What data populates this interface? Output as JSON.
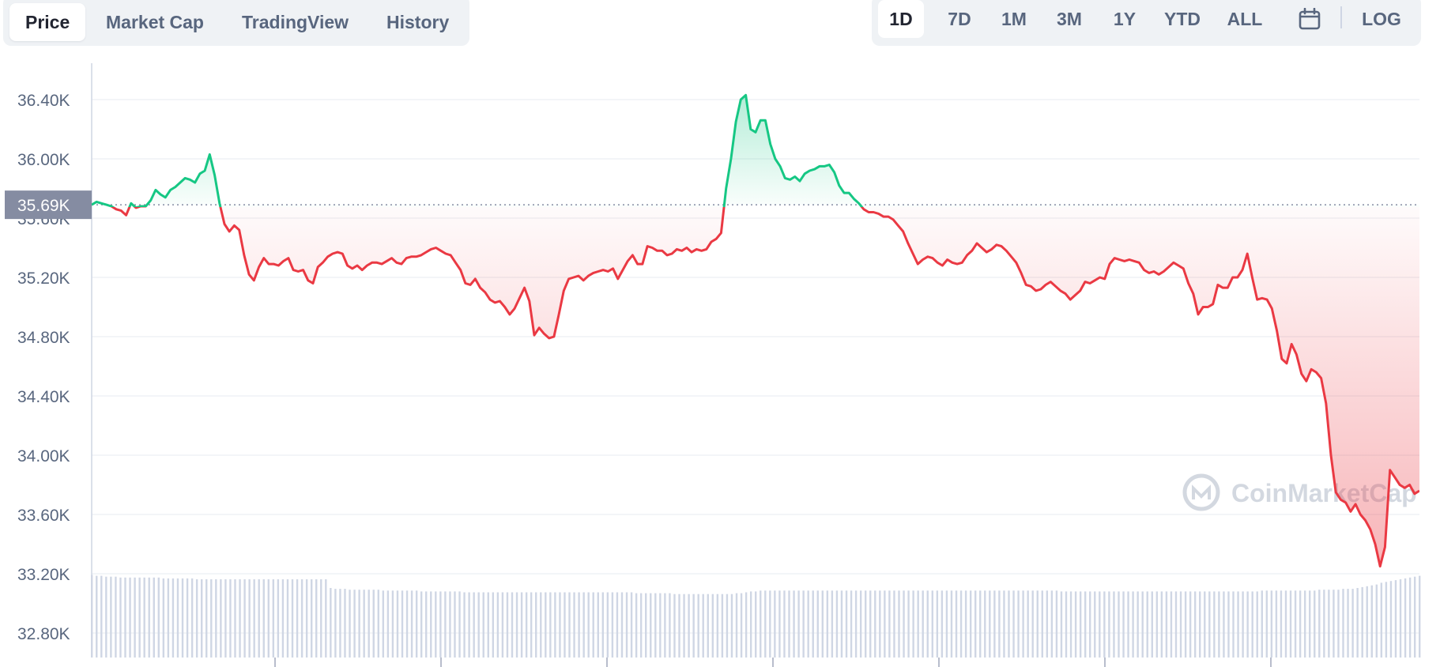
{
  "tabs": [
    {
      "label": "Price",
      "active": true
    },
    {
      "label": "Market Cap",
      "active": false
    },
    {
      "label": "TradingView",
      "active": false
    },
    {
      "label": "History",
      "active": false
    }
  ],
  "ranges": [
    {
      "label": "1D",
      "active": true
    },
    {
      "label": "7D",
      "active": false
    },
    {
      "label": "1M",
      "active": false
    },
    {
      "label": "3M",
      "active": false
    },
    {
      "label": "1Y",
      "active": false
    },
    {
      "label": "YTD",
      "active": false
    },
    {
      "label": "ALL",
      "active": false
    }
  ],
  "calendar_icon": "calendar-icon",
  "log_label": "LOG",
  "watermark": "CoinMarketCap",
  "current_price_label": "35.69K",
  "colors": {
    "up": "#16c784",
    "down": "#ea3943",
    "volume": "#cfd6e4",
    "grid": "#eff2f5",
    "baseline_tag": "#858ca2"
  },
  "chart_data": {
    "type": "area",
    "title": "",
    "xlabel": "",
    "ylabel": "",
    "ylim": [
      32600,
      36600
    ],
    "yticks": [
      32800,
      33200,
      33600,
      34000,
      34400,
      34800,
      35200,
      35600,
      36000,
      36400
    ],
    "ytick_labels": [
      "32.80K",
      "33.20K",
      "33.60K",
      "34.00K",
      "34.40K",
      "34.80K",
      "35.20K",
      "35.60K",
      "36.00K",
      "36.40K"
    ],
    "reference_price": 35690,
    "grid": true,
    "series": [
      {
        "values": [
          35690,
          35710,
          35700,
          35690,
          35680,
          35660,
          35650,
          35620,
          35700,
          35670,
          35680,
          35680,
          35720,
          35790,
          35760,
          35740,
          35790,
          35810,
          35840,
          35870,
          35860,
          35840,
          35900,
          35920,
          36030,
          35890,
          35700,
          35560,
          35510,
          35550,
          35520,
          35350,
          35220,
          35180,
          35270,
          35330,
          35290,
          35290,
          35280,
          35310,
          35330,
          35250,
          35240,
          35250,
          35180,
          35160,
          35270,
          35300,
          35340,
          35360,
          35370,
          35360,
          35280,
          35260,
          35280,
          35250,
          35280,
          35300,
          35300,
          35290,
          35310,
          35330,
          35300,
          35290,
          35330,
          35340,
          35340,
          35350,
          35370,
          35390,
          35400,
          35380,
          35360,
          35350,
          35300,
          35250,
          35160,
          35150,
          35190,
          35130,
          35100,
          35050,
          35030,
          35040,
          35000,
          34950,
          34990,
          35060,
          35130,
          35040,
          34810,
          34860,
          34820,
          34790,
          34800,
          34950,
          35110,
          35190,
          35200,
          35210,
          35180,
          35210,
          35230,
          35240,
          35250,
          35240,
          35260,
          35190,
          35250,
          35310,
          35350,
          35290,
          35290,
          35410,
          35400,
          35380,
          35380,
          35350,
          35360,
          35390,
          35380,
          35400,
          35370,
          35390,
          35380,
          35390,
          35440,
          35460,
          35500,
          35800,
          36000,
          36250,
          36400,
          36430,
          36200,
          36180,
          36260,
          36260,
          36100,
          36000,
          35950,
          35870,
          35860,
          35880,
          35850,
          35900,
          35920,
          35930,
          35950,
          35950,
          35960,
          35910,
          35820,
          35770,
          35770,
          35730,
          35700,
          35660,
          35640,
          35640,
          35630,
          35610,
          35610,
          35590,
          35550,
          35510,
          35430,
          35360,
          35290,
          35320,
          35340,
          35330,
          35300,
          35280,
          35320,
          35300,
          35290,
          35300,
          35350,
          35380,
          35430,
          35400,
          35370,
          35390,
          35420,
          35410,
          35380,
          35340,
          35300,
          35230,
          35150,
          35140,
          35110,
          35120,
          35150,
          35170,
          35140,
          35110,
          35090,
          35050,
          35080,
          35110,
          35170,
          35160,
          35180,
          35200,
          35190,
          35290,
          35330,
          35320,
          35310,
          35320,
          35310,
          35300,
          35250,
          35230,
          35240,
          35220,
          35240,
          35270,
          35300,
          35280,
          35260,
          35160,
          35090,
          34950,
          35000,
          35000,
          35020,
          35150,
          35130,
          35130,
          35200,
          35200,
          35250,
          35360,
          35200,
          35050,
          35060,
          35050,
          34990,
          34840,
          34650,
          34620,
          34750,
          34680,
          34550,
          34500,
          34580,
          34560,
          34520,
          34350,
          34000,
          33750,
          33700,
          33680,
          33620,
          33670,
          33600,
          33560,
          33500,
          33400,
          33250,
          33380,
          33900,
          33850,
          33800,
          33780,
          33800,
          33740,
          33760
        ]
      }
    ],
    "volume": [
      0.95,
      0.94,
      0.94,
      0.93,
      0.93,
      0.93,
      0.92,
      0.92,
      0.92,
      0.92,
      0.92,
      0.92,
      0.92,
      0.92,
      0.92,
      0.91,
      0.91,
      0.91,
      0.91,
      0.91,
      0.91,
      0.91,
      0.9,
      0.9,
      0.9,
      0.9,
      0.9,
      0.9,
      0.9,
      0.9,
      0.9,
      0.9,
      0.9,
      0.9,
      0.9,
      0.9,
      0.9,
      0.9,
      0.9,
      0.9,
      0.9,
      0.9,
      0.9,
      0.9,
      0.9,
      0.9,
      0.9,
      0.9,
      0.9,
      0.9,
      0.8,
      0.79,
      0.79,
      0.79,
      0.78,
      0.78,
      0.78,
      0.78,
      0.78,
      0.78,
      0.78,
      0.77,
      0.77,
      0.77,
      0.77,
      0.77,
      0.77,
      0.77,
      0.77,
      0.76,
      0.76,
      0.76,
      0.76,
      0.76,
      0.76,
      0.76,
      0.76,
      0.76,
      0.75,
      0.75,
      0.75,
      0.75,
      0.75,
      0.75,
      0.75,
      0.75,
      0.75,
      0.75,
      0.75,
      0.75,
      0.75,
      0.75,
      0.75,
      0.75,
      0.75,
      0.75,
      0.75,
      0.75,
      0.75,
      0.75,
      0.75,
      0.75,
      0.75,
      0.75,
      0.75,
      0.75,
      0.75,
      0.75,
      0.75,
      0.75,
      0.75,
      0.75,
      0.75,
      0.75,
      0.74,
      0.74,
      0.74,
      0.74,
      0.74,
      0.74,
      0.74,
      0.74,
      0.73,
      0.73,
      0.73,
      0.73,
      0.73,
      0.73,
      0.73,
      0.73,
      0.73,
      0.73,
      0.73,
      0.73,
      0.73,
      0.74,
      0.74,
      0.75,
      0.76,
      0.76,
      0.77,
      0.77,
      0.77,
      0.77,
      0.77,
      0.77,
      0.77,
      0.77,
      0.77,
      0.77,
      0.77,
      0.77,
      0.77,
      0.77,
      0.77,
      0.77,
      0.77,
      0.77,
      0.77,
      0.77,
      0.77,
      0.77,
      0.77,
      0.77,
      0.77,
      0.77,
      0.77,
      0.77,
      0.77,
      0.77,
      0.77,
      0.77,
      0.77,
      0.77,
      0.77,
      0.77,
      0.77,
      0.77,
      0.77,
      0.77,
      0.77,
      0.77,
      0.77,
      0.77,
      0.77,
      0.77,
      0.77,
      0.77,
      0.77,
      0.77,
      0.77,
      0.77,
      0.77,
      0.77,
      0.77,
      0.77,
      0.77,
      0.77,
      0.77,
      0.77,
      0.77,
      0.77,
      0.77,
      0.76,
      0.76,
      0.76,
      0.76,
      0.76,
      0.76,
      0.76,
      0.76,
      0.76,
      0.76,
      0.76,
      0.76,
      0.76,
      0.76,
      0.76,
      0.76,
      0.76,
      0.76,
      0.76,
      0.76,
      0.76,
      0.76,
      0.76,
      0.76,
      0.76,
      0.76,
      0.76,
      0.76,
      0.76,
      0.76,
      0.76,
      0.76,
      0.76,
      0.76,
      0.76,
      0.76,
      0.76,
      0.76,
      0.76,
      0.76,
      0.76,
      0.76,
      0.77,
      0.77,
      0.77,
      0.77,
      0.77,
      0.77,
      0.77,
      0.77,
      0.77,
      0.77,
      0.77,
      0.77,
      0.78,
      0.78,
      0.78,
      0.78,
      0.78,
      0.79,
      0.79,
      0.79,
      0.8,
      0.81,
      0.82,
      0.83,
      0.84,
      0.86,
      0.87,
      0.88,
      0.89,
      0.9,
      0.91,
      0.92,
      0.93,
      0.94
    ]
  }
}
